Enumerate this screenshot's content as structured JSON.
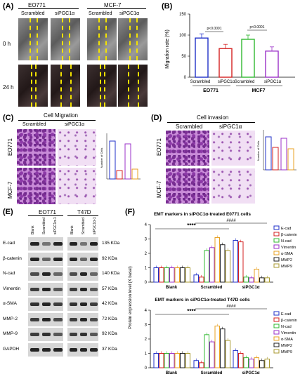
{
  "panelA": {
    "letter": "(A)",
    "col1": "EO771",
    "col2": "MCF-7",
    "sub": [
      "Scrambled",
      "siPGC1α",
      "Scrambled",
      "siPGC1α"
    ],
    "rows": [
      "0 h",
      "24 h"
    ]
  },
  "panelB": {
    "letter": "(B)",
    "ylabel": "Migration rate (%)",
    "p1": "p<0.0001",
    "p2": "p<0.0001",
    "groups": [
      "EO771",
      "MCF7"
    ],
    "bars": [
      "Scrambled",
      "siPGC1α",
      "Scrambled",
      "siPGC1α"
    ]
  },
  "panelC": {
    "letter": "(C)",
    "title": "Cell Migration",
    "sub": [
      "Scrambled",
      "siPGC1α"
    ],
    "rows": [
      "EO771",
      "MCF-7"
    ],
    "ylabel": "Number of Cells"
  },
  "panelD": {
    "letter": "(D)",
    "title": "Cell invasion",
    "sub": [
      "Scrambled",
      "siPGC1α"
    ],
    "rows": [
      "EO771",
      "MCF-7"
    ],
    "ylabel": "Number of Cells"
  },
  "panelE": {
    "letter": "(E)",
    "groups": [
      "EO771",
      "T47D"
    ],
    "lanes": [
      "Blank",
      "Scrambled",
      "siPGC1α-1"
    ],
    "proteins": [
      "E-cad",
      "β-catenin",
      "N-cad",
      "Vimentin",
      "α-SMA",
      "MMP-2",
      "MMP-9",
      "GAPDH"
    ],
    "kda": [
      "135 KDa",
      "92 KDa",
      "140 KDa",
      "57 KDa",
      "42 KDa",
      "72 KDa",
      "92 KDa",
      "37 KDa"
    ]
  },
  "panelF": {
    "letter": "(F)",
    "title1": "EMT markers in siPGC1α-treated E0771 cells",
    "title2": "EMT markers in siPGC1α-treated T47D cells",
    "ylabel": "Protein expression level (X basal)",
    "sig1": "****",
    "sig2": "####",
    "legend": [
      "E-cad",
      "β-catenin",
      "N-cad",
      "Vimentin",
      "α-SMA",
      "MMP2",
      "MMP9"
    ]
  },
  "colors": {
    "blue": "#2030c8",
    "red": "#d42020",
    "green": "#30b830",
    "purple": "#9b30c8",
    "orange": "#e8a020",
    "gold": "#a89a30",
    "yellow": "#e8c020"
  },
  "chart_data": [
    {
      "type": "bar",
      "categories": [
        "EO771 Scrambled",
        "EO771 siPGC1α",
        "MCF7 Scrambled",
        "MCF7 siPGC1α"
      ],
      "values": [
        93,
        68,
        90,
        62
      ],
      "ylim": [
        0,
        150
      ],
      "ylabel": "Migration rate (%)"
    },
    {
      "type": "bar",
      "categories": [
        "Blank",
        "Scrambled",
        "siPGC1α"
      ],
      "ylim": [
        0,
        4
      ],
      "series": [
        {
          "name": "E-cad",
          "values": [
            1,
            0.5,
            2.9
          ]
        },
        {
          "name": "β-catenin",
          "values": [
            1,
            0.35,
            2.8
          ]
        },
        {
          "name": "N-cad",
          "values": [
            1,
            2.2,
            0.35
          ]
        },
        {
          "name": "Vimentin",
          "values": [
            1,
            2.4,
            0.3
          ]
        },
        {
          "name": "α-SMA",
          "values": [
            1,
            3.1,
            0.9
          ]
        },
        {
          "name": "MMP2",
          "values": [
            1,
            2.6,
            0.3
          ]
        },
        {
          "name": "MMP9",
          "values": [
            1,
            2.2,
            0.3
          ]
        }
      ]
    },
    {
      "type": "bar",
      "categories": [
        "Blank",
        "Scrambled",
        "siPGC1α"
      ],
      "ylim": [
        0,
        4
      ],
      "series": [
        {
          "name": "E-cad",
          "values": [
            1,
            0.5,
            1.2
          ]
        },
        {
          "name": "β-catenin",
          "values": [
            1,
            0.35,
            1.0
          ]
        },
        {
          "name": "N-cad",
          "values": [
            1,
            2.3,
            0.7
          ]
        },
        {
          "name": "Vimentin",
          "values": [
            1,
            1.8,
            0.6
          ]
        },
        {
          "name": "α-SMA",
          "values": [
            1,
            2.9,
            0.7
          ]
        },
        {
          "name": "MMP2",
          "values": [
            1,
            2.7,
            0.5
          ]
        },
        {
          "name": "MMP9",
          "values": [
            1,
            1.9,
            0.6
          ]
        }
      ]
    }
  ]
}
